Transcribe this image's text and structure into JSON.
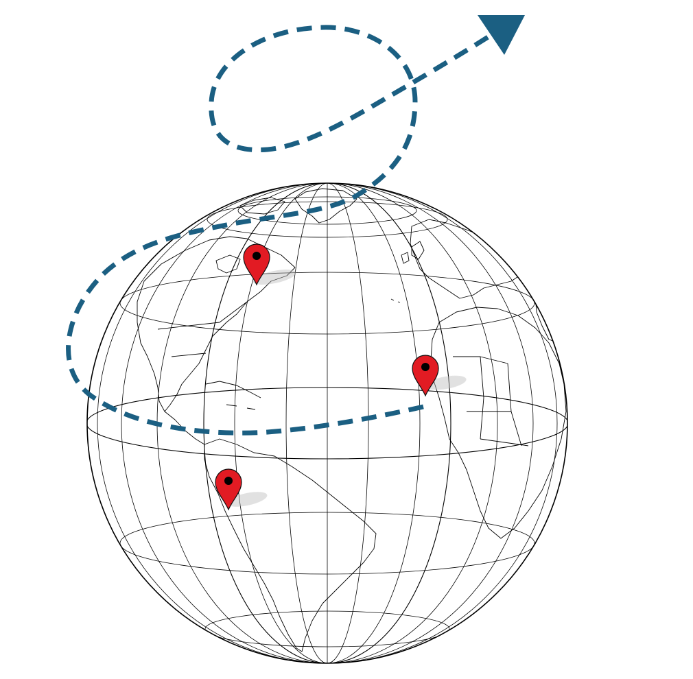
{
  "colors": {
    "route": "#1b5f82",
    "pin": "#e21b23",
    "pin_outline": "#111111",
    "pin_dot": "#000000",
    "graticule": "#000000",
    "coastline": "#000000",
    "background": "#ffffff"
  },
  "icons": {
    "pins": [
      "map-pin-icon",
      "map-pin-icon",
      "map-pin-icon"
    ],
    "arrowhead": "arrowhead-icon"
  },
  "route": {
    "style": "dashed",
    "direction": "outbound-to-upper-right"
  }
}
